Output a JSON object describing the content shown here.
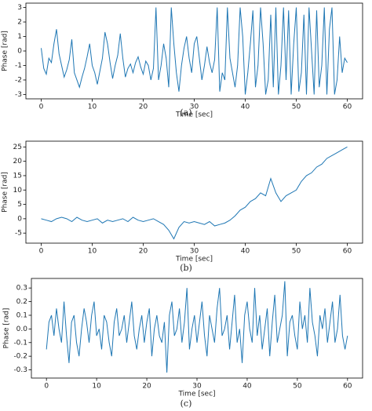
{
  "chart_data": [
    {
      "type": "line",
      "caption": "(a)",
      "xlabel": "Time [sec]",
      "ylabel": "Phase [rad]",
      "xlim": [
        -3,
        63
      ],
      "ylim": [
        -3.3,
        3.3
      ],
      "xticks": [
        0,
        10,
        20,
        30,
        40,
        50,
        60
      ],
      "yticks": [
        -3,
        -2,
        -1,
        0,
        1,
        2,
        3
      ],
      "grid": false,
      "series": [
        {
          "color": "#1f77b4",
          "x": [
            0,
            0.5,
            1,
            1.5,
            2,
            2.5,
            3,
            3.5,
            4,
            4.5,
            5,
            5.5,
            6,
            6.5,
            7,
            7.5,
            8,
            8.5,
            9,
            9.5,
            10,
            10.5,
            11,
            11.5,
            12,
            12.5,
            13,
            13.5,
            14,
            14.5,
            15,
            15.5,
            16,
            16.5,
            17,
            17.5,
            18,
            18.5,
            19,
            19.5,
            20,
            20.5,
            21,
            21.5,
            22,
            22.5,
            23,
            23.5,
            24,
            24.5,
            25,
            25.5,
            26,
            26.5,
            27,
            27.5,
            28,
            28.5,
            29,
            29.5,
            30,
            30.5,
            31,
            31.5,
            32,
            32.5,
            33,
            33.5,
            34,
            34.5,
            35,
            35.5,
            36,
            36.5,
            37,
            37.5,
            38,
            38.5,
            39,
            39.5,
            40,
            40.5,
            41,
            41.5,
            42,
            42.5,
            43,
            43.5,
            44,
            44.5,
            45,
            45.5,
            46,
            46.5,
            47,
            47.5,
            48,
            48.5,
            49,
            49.5,
            50,
            50.5,
            51,
            51.5,
            52,
            52.5,
            53,
            53.5,
            54,
            54.5,
            55,
            55.5,
            56,
            56.5,
            57,
            57.5,
            58,
            58.5,
            59,
            59.5,
            60
          ],
          "values": [
            0.2,
            -1.2,
            -1.6,
            -0.5,
            -0.8,
            0.5,
            1.5,
            -0.2,
            -1.0,
            -1.8,
            -1.3,
            -0.6,
            0.8,
            -1.5,
            -2.0,
            -2.5,
            -1.8,
            -1.2,
            -0.4,
            0.5,
            -1.0,
            -1.5,
            -2.3,
            -1.4,
            -0.5,
            1.3,
            0.5,
            -0.8,
            -1.9,
            -1.0,
            -0.3,
            1.2,
            -0.5,
            -1.8,
            -1.2,
            -0.9,
            -1.5,
            -0.8,
            -0.4,
            -1.1,
            -1.6,
            -0.7,
            -1.0,
            -2.0,
            -1.2,
            3.0,
            -2.0,
            -1.0,
            0.5,
            -0.5,
            -2.5,
            3.0,
            0.5,
            -1.5,
            -2.8,
            -1.0,
            0.2,
            1.0,
            -0.5,
            -1.5,
            0.5,
            1.0,
            -0.5,
            -2.0,
            -1.0,
            0.3,
            -0.8,
            -1.5,
            -0.6,
            3.0,
            -2.8,
            -1.5,
            -2.0,
            3.0,
            -0.5,
            -1.5,
            -2.5,
            -1.0,
            3.0,
            1.0,
            -3.0,
            -1.5,
            0.5,
            2.8,
            -2.5,
            -1.0,
            3.0,
            0.5,
            -3.0,
            -2.0,
            2.5,
            -2.5,
            3.0,
            -3.0,
            -1.0,
            3.0,
            -2.0,
            2.8,
            -3.0,
            0.5,
            3.0,
            -2.8,
            -1.5,
            2.5,
            -3.0,
            3.0,
            0.0,
            -3.0,
            2.8,
            -2.5,
            -1.0,
            3.0,
            -3.0,
            1.5,
            3.0,
            -3.0,
            -2.0,
            1.0,
            -1.5,
            -0.5,
            -0.8
          ]
        }
      ]
    },
    {
      "type": "line",
      "caption": "(b)",
      "xlabel": "Time [sec]",
      "ylabel": "Phase [rad]",
      "xlim": [
        -3,
        63
      ],
      "ylim": [
        -8.5,
        27
      ],
      "xticks": [
        0,
        10,
        20,
        30,
        40,
        50,
        60
      ],
      "yticks": [
        -5,
        0,
        5,
        10,
        15,
        20,
        25
      ],
      "grid": false,
      "series": [
        {
          "color": "#1f77b4",
          "x": [
            0,
            1,
            2,
            3,
            4,
            5,
            6,
            7,
            8,
            9,
            10,
            11,
            12,
            13,
            14,
            15,
            16,
            17,
            18,
            19,
            20,
            21,
            22,
            23,
            24,
            25,
            26,
            27,
            28,
            29,
            30,
            31,
            32,
            33,
            34,
            35,
            36,
            37,
            38,
            39,
            40,
            41,
            42,
            43,
            44,
            45,
            46,
            47,
            48,
            49,
            50,
            51,
            52,
            53,
            54,
            55,
            56,
            57,
            58,
            59,
            60
          ],
          "values": [
            0,
            -0.5,
            -1,
            0,
            0.5,
            0,
            -1,
            0.5,
            -0.5,
            -1,
            -0.5,
            0,
            -1.5,
            -0.5,
            -1,
            -0.5,
            0,
            -1,
            0.5,
            -0.5,
            -1,
            -0.5,
            0,
            -1,
            -2,
            -4,
            -7,
            -3,
            -1,
            -1.5,
            -1,
            -1.5,
            -2,
            -1,
            -2.5,
            -2,
            -1.5,
            -0.5,
            1,
            3,
            4,
            6,
            7,
            9,
            8,
            14,
            9,
            6,
            8,
            9,
            10,
            13,
            15,
            16,
            18,
            19,
            21,
            22,
            23,
            24,
            25
          ]
        }
      ]
    },
    {
      "type": "line",
      "caption": "(c)",
      "xlabel": "Time [sec]",
      "ylabel": "Phase [rad]",
      "xlim": [
        -3,
        63
      ],
      "ylim": [
        -0.36,
        0.37
      ],
      "xticks": [
        0,
        10,
        20,
        30,
        40,
        50,
        60
      ],
      "yticks": [
        -0.3,
        -0.2,
        -0.1,
        {
          "value": 0,
          "label": "0.0"
        },
        0.1,
        0.2,
        0.3
      ],
      "grid": false,
      "series": [
        {
          "color": "#1f77b4",
          "x": [
            0,
            0.5,
            1,
            1.5,
            2,
            2.5,
            3,
            3.5,
            4,
            4.5,
            5,
            5.5,
            6,
            6.5,
            7,
            7.5,
            8,
            8.5,
            9,
            9.5,
            10,
            10.5,
            11,
            11.5,
            12,
            12.5,
            13,
            13.5,
            14,
            14.5,
            15,
            15.5,
            16,
            16.5,
            17,
            17.5,
            18,
            18.5,
            19,
            19.5,
            20,
            20.5,
            21,
            21.5,
            22,
            22.5,
            23,
            23.5,
            24,
            24.5,
            25,
            25.5,
            26,
            26.5,
            27,
            27.5,
            28,
            28.5,
            29,
            29.5,
            30,
            30.5,
            31,
            31.5,
            32,
            32.5,
            33,
            33.5,
            34,
            34.5,
            35,
            35.5,
            36,
            36.5,
            37,
            37.5,
            38,
            38.5,
            39,
            39.5,
            40,
            40.5,
            41,
            41.5,
            42,
            42.5,
            43,
            43.5,
            44,
            44.5,
            45,
            45.5,
            46,
            46.5,
            47,
            47.5,
            48,
            48.5,
            49,
            49.5,
            50,
            50.5,
            51,
            51.5,
            52,
            52.5,
            53,
            53.5,
            54,
            54.5,
            55,
            55.5,
            56,
            56.5,
            57,
            57.5,
            58,
            58.5,
            59,
            59.5,
            60
          ],
          "values": [
            -0.15,
            0.05,
            0.1,
            -0.05,
            0.15,
            0.0,
            -0.1,
            0.2,
            -0.05,
            -0.25,
            0.05,
            0.1,
            -0.1,
            -0.2,
            0.0,
            0.15,
            0.05,
            -0.1,
            0.1,
            0.2,
            -0.05,
            0.0,
            -0.15,
            0.1,
            0.05,
            -0.1,
            -0.2,
            0.05,
            0.15,
            -0.05,
            0.0,
            0.1,
            -0.1,
            0.05,
            0.2,
            -0.05,
            -0.15,
            0.0,
            0.1,
            -0.1,
            0.05,
            0.15,
            -0.2,
            0.0,
            0.1,
            -0.05,
            -0.1,
            0.05,
            -0.32,
            0.1,
            0.2,
            -0.05,
            0.0,
            0.15,
            -0.1,
            0.05,
            0.3,
            -0.15,
            0.0,
            0.1,
            -0.1,
            0.05,
            0.2,
            -0.05,
            -0.2,
            0.1,
            0.0,
            -0.1,
            0.15,
            0.3,
            -0.05,
            0.0,
            0.1,
            -0.15,
            0.05,
            0.25,
            -0.1,
            0.0,
            -0.25,
            0.1,
            0.2,
            0.0,
            -0.1,
            0.3,
            -0.05,
            0.1,
            -0.15,
            0.0,
            0.15,
            -0.2,
            0.05,
            0.25,
            -0.1,
            0.0,
            0.1,
            0.35,
            -0.2,
            0.05,
            0.1,
            -0.05,
            -0.15,
            0.2,
            0.0,
            0.1,
            -0.1,
            0.3,
            0.05,
            -0.05,
            -0.2,
            0.1,
            0.0,
            0.15,
            -0.1,
            0.05,
            0.2,
            -0.1,
            0.0,
            0.25,
            -0.05,
            -0.15,
            -0.05
          ]
        }
      ]
    }
  ]
}
